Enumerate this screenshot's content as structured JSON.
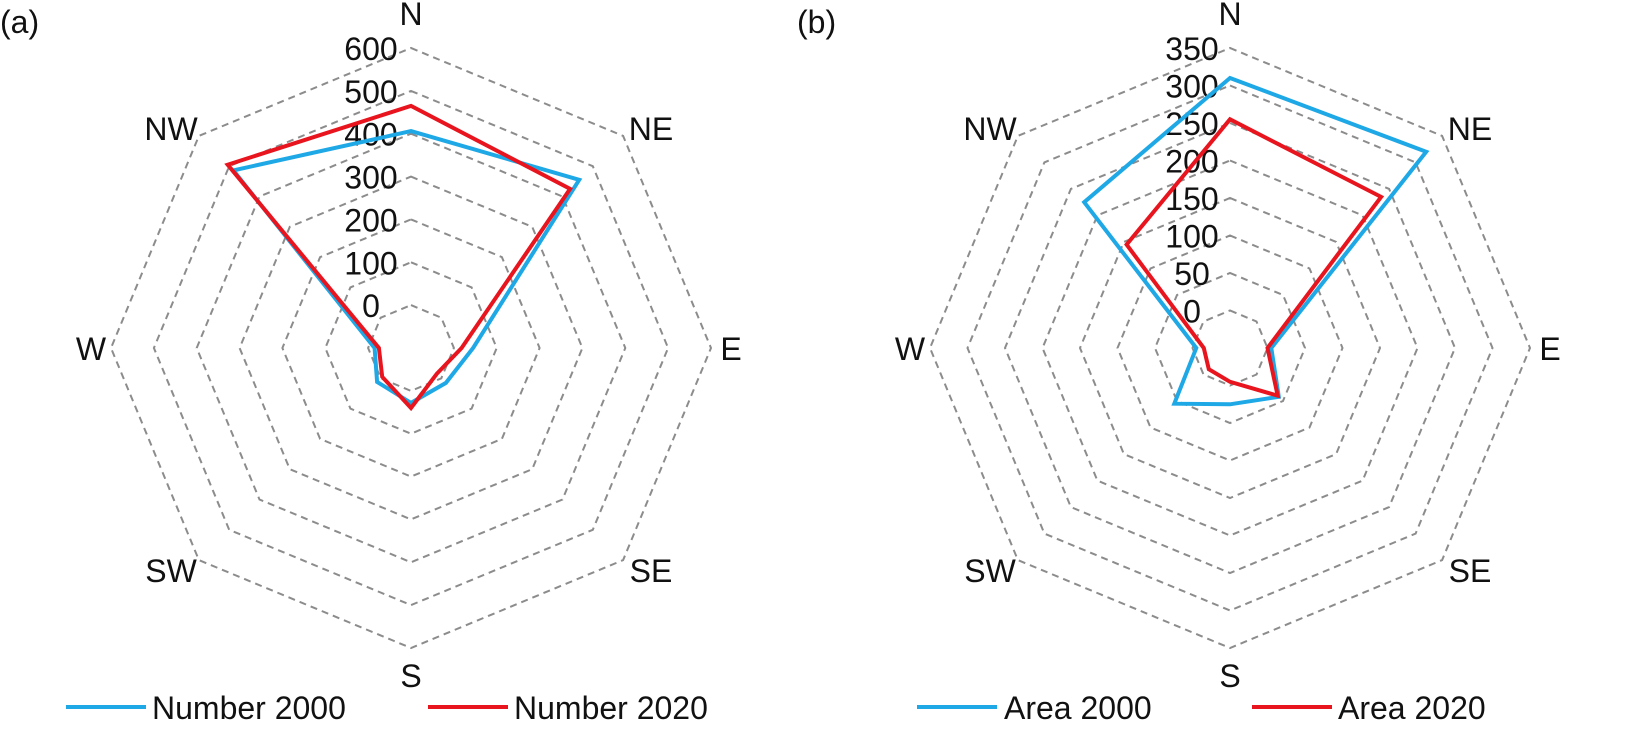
{
  "charts": [
    {
      "panel_label": "(a)",
      "chart_data": {
        "type": "radar",
        "directions": [
          "N",
          "NE",
          "E",
          "SE",
          "S",
          "SW",
          "W",
          "NW"
        ],
        "radial_ticks": [
          "0",
          "100",
          "200",
          "300",
          "400",
          "500",
          "600"
        ],
        "rlim": [
          -100,
          600
        ],
        "grid": true,
        "legend_position": "bottom",
        "series": [
          {
            "name": "Number 2000",
            "color": "#1ea8e6",
            "values": [
              406,
              455,
              45,
              15,
              28,
              12,
              -15,
              486
            ]
          },
          {
            "name": "Number 2020",
            "color": "#e8141e",
            "values": [
              465,
              425,
              18,
              -15,
              40,
              -5,
              -25,
              505
            ]
          }
        ]
      }
    },
    {
      "panel_label": "(b)",
      "chart_data": {
        "type": "radar",
        "directions": [
          "N",
          "NE",
          "E",
          "SE",
          "S",
          "SW",
          "W",
          "NW"
        ],
        "radial_ticks": [
          "0",
          "50",
          "100",
          "150",
          "200",
          "250",
          "300",
          "350"
        ],
        "rlim": [
          -50,
          350
        ],
        "grid": true,
        "legend_position": "bottom",
        "series": [
          {
            "name": "Area 2000",
            "color": "#1ea8e6",
            "values": [
              310,
              320,
              5,
              42,
              25,
              55,
              -5,
              225
            ]
          },
          {
            "name": "Area 2020",
            "color": "#e8141e",
            "values": [
              255,
              235,
              0,
              40,
              -5,
              -10,
              -15,
              145
            ]
          }
        ]
      }
    }
  ]
}
